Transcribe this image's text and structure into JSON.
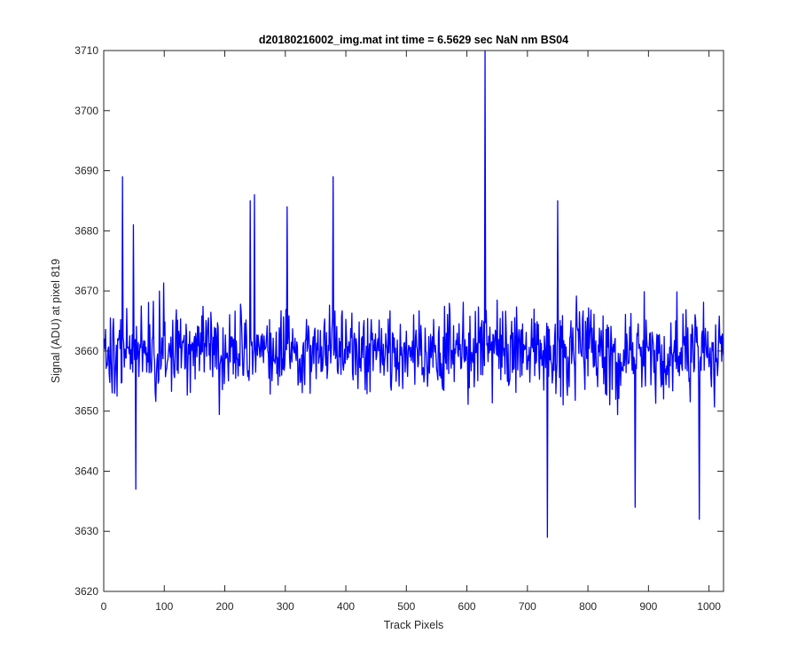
{
  "chart_data": {
    "type": "line",
    "title": "d20180216002_img.mat int time = 6.5629 sec  NaN nm BS04",
    "xlabel": "Track Pixels",
    "ylabel": "Signal (ADU) at pixel 819",
    "xlim": [
      0,
      1024
    ],
    "ylim": [
      3620,
      3710
    ],
    "xticks": [
      0,
      100,
      200,
      300,
      400,
      500,
      600,
      700,
      800,
      900,
      1000
    ],
    "yticks": [
      3620,
      3630,
      3640,
      3650,
      3660,
      3670,
      3680,
      3690,
      3700,
      3710
    ],
    "grid": false,
    "line_color": "#0000ff",
    "series": [
      {
        "x_start": 1,
        "x_step": 1,
        "count": 1024,
        "mean": 3660,
        "typical_range": [
          3642,
          3678
        ],
        "peaks": [
          {
            "x": 31,
            "y": 3689
          },
          {
            "x": 49,
            "y": 3681
          },
          {
            "x": 53,
            "y": 3637
          },
          {
            "x": 242,
            "y": 3685
          },
          {
            "x": 249,
            "y": 3686
          },
          {
            "x": 303,
            "y": 3684
          },
          {
            "x": 379,
            "y": 3689
          },
          {
            "x": 630,
            "y": 3710
          },
          {
            "x": 733,
            "y": 3629
          },
          {
            "x": 750,
            "y": 3685
          },
          {
            "x": 878,
            "y": 3634
          },
          {
            "x": 984,
            "y": 3632
          }
        ]
      }
    ]
  }
}
